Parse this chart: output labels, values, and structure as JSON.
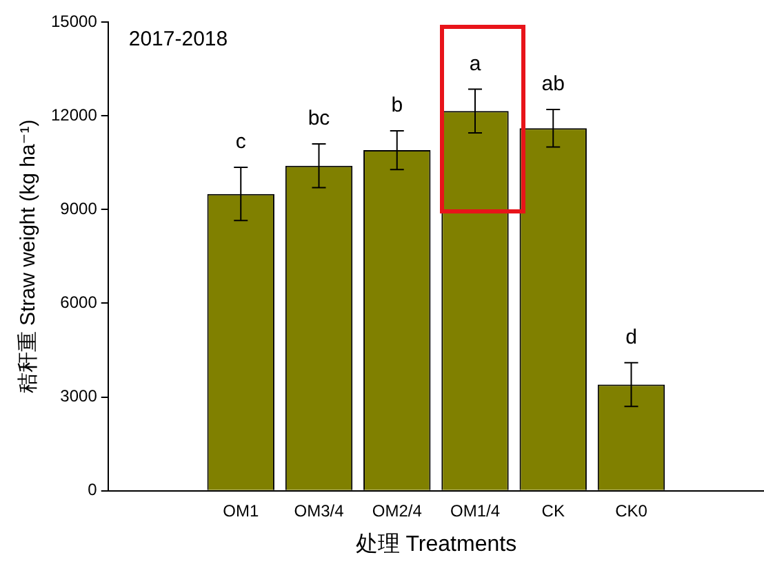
{
  "chart_data": {
    "type": "bar",
    "title": "2017-2018",
    "xlabel": "处理 Treatments",
    "ylabel": "秸秆重 Straw weight (kg ha⁻¹)",
    "categories": [
      "OM1",
      "OM3/4",
      "OM2/4",
      "OM1/4",
      "CK",
      "CK0"
    ],
    "values": [
      9500,
      10400,
      10900,
      12150,
      11600,
      3400
    ],
    "errors": [
      850,
      700,
      620,
      700,
      600,
      700
    ],
    "color": "#808000",
    "ylim": [
      0,
      15000
    ],
    "yticks": [
      0,
      3000,
      6000,
      9000,
      12000,
      15000
    ],
    "grid": false,
    "legend": false,
    "annotations": [
      "c",
      "bc",
      "b",
      "a",
      "ab",
      "d"
    ]
  }
}
